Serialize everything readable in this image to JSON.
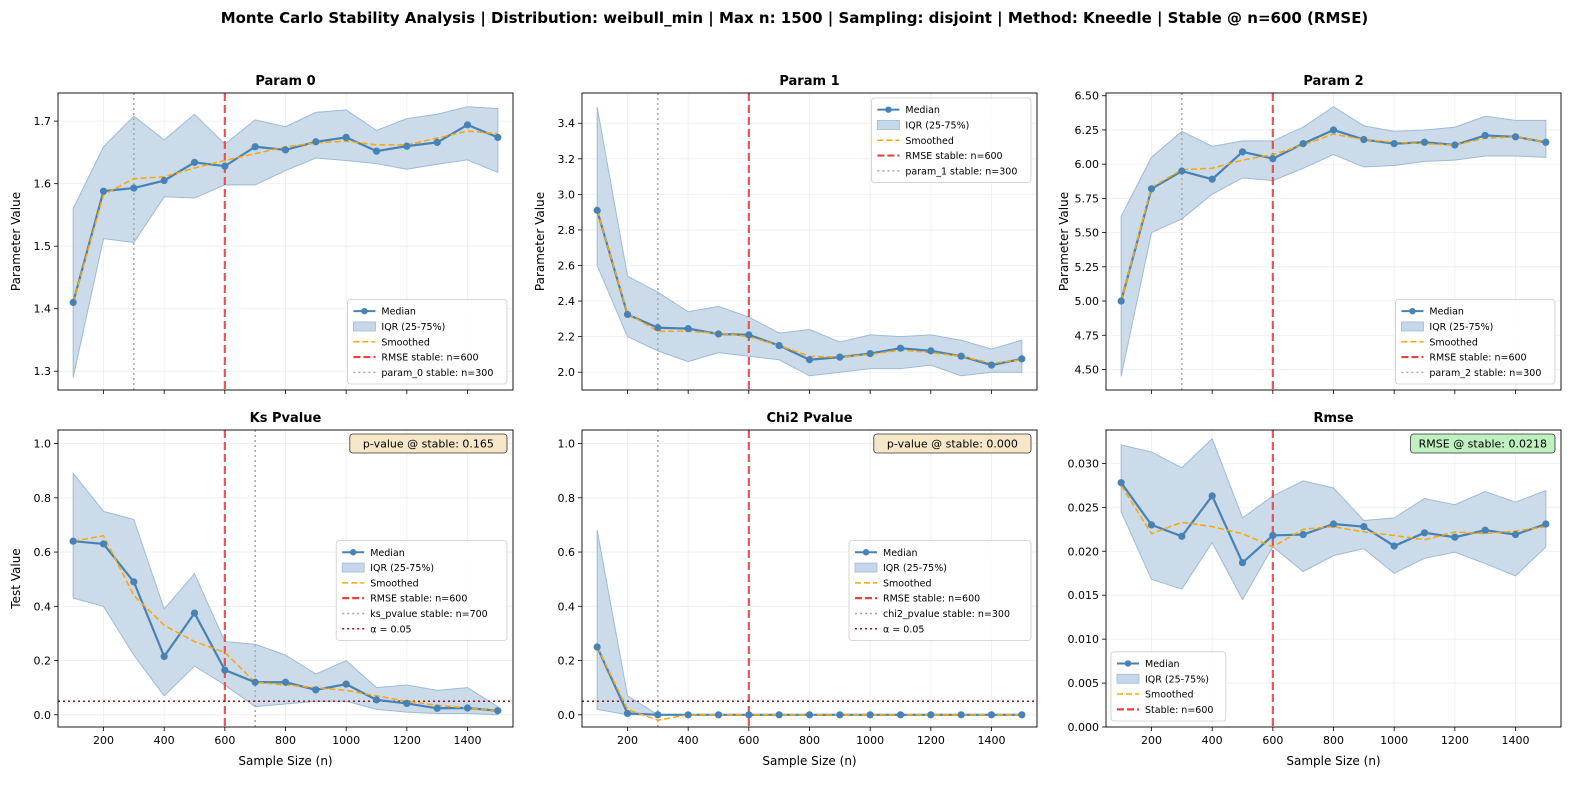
{
  "figure_title": "Monte Carlo Stability Analysis | Distribution: weibull_min | Max n: 1500 | Sampling: disjoint | Method: Kneedle | Stable @ n=600 (RMSE)",
  "colors": {
    "median": "#4682b4",
    "iqr_fill": "#c5d7e8",
    "iqr_edge": "#9dbbd6",
    "smoothed": "#ffa500",
    "rmse_stable": "#e8423f",
    "param_stable": "#a6a6a6",
    "alpha": "#8b1a1a",
    "pvalue_box": "#f6e7c8",
    "rmse_box": "#bff0bf"
  },
  "chart_data": [
    {
      "type": "line",
      "title": "Param 0",
      "xlabel": "",
      "ylabel": "Parameter Value",
      "x": [
        100,
        200,
        300,
        400,
        500,
        600,
        700,
        800,
        900,
        1000,
        1100,
        1200,
        1300,
        1400,
        1500
      ],
      "xlim": [
        50,
        1550
      ],
      "ylim": [
        1.27,
        1.745
      ],
      "yticks": [
        1.3,
        1.4,
        1.5,
        1.6,
        1.7
      ],
      "ytick_labels": [
        "1.3",
        "1.4",
        "1.5",
        "1.6",
        "1.7"
      ],
      "xticks": [
        200,
        400,
        600,
        800,
        1000,
        1200,
        1400
      ],
      "xtick_labels": [],
      "series": [
        {
          "name": "Median",
          "kind": "median",
          "values": [
            1.41,
            1.588,
            1.593,
            1.605,
            1.634,
            1.628,
            1.659,
            1.654,
            1.667,
            1.674,
            1.652,
            1.66,
            1.666,
            1.694,
            1.674
          ]
        },
        {
          "name": "IQR (25-75%)",
          "kind": "iqr",
          "lower": [
            1.29,
            1.512,
            1.506,
            1.579,
            1.577,
            1.598,
            1.598,
            1.621,
            1.641,
            1.637,
            1.632,
            1.623,
            1.631,
            1.638,
            1.618
          ],
          "upper": [
            1.56,
            1.659,
            1.708,
            1.67,
            1.711,
            1.663,
            1.702,
            1.691,
            1.714,
            1.718,
            1.685,
            1.704,
            1.711,
            1.723,
            1.72
          ]
        },
        {
          "name": "Smoothed",
          "kind": "smoothed",
          "values": [
            1.41,
            1.582,
            1.608,
            1.611,
            1.625,
            1.637,
            1.648,
            1.659,
            1.665,
            1.668,
            1.662,
            1.662,
            1.673,
            1.684,
            1.68
          ]
        }
      ],
      "vlines": [
        {
          "name": "RMSE stable: n=600",
          "x": 600,
          "kind": "rmse"
        },
        {
          "name": "param_0 stable: n=300",
          "x": 300,
          "kind": "param"
        }
      ],
      "legend_position": "lower-right"
    },
    {
      "type": "line",
      "title": "Param 1",
      "xlabel": "",
      "ylabel": "Parameter Value",
      "x": [
        100,
        200,
        300,
        400,
        500,
        600,
        700,
        800,
        900,
        1000,
        1100,
        1200,
        1300,
        1400,
        1500
      ],
      "xlim": [
        50,
        1550
      ],
      "ylim": [
        1.9,
        3.57
      ],
      "yticks": [
        2.0,
        2.2,
        2.4,
        2.6,
        2.8,
        3.0,
        3.2,
        3.4
      ],
      "ytick_labels": [
        "2.0",
        "2.2",
        "2.4",
        "2.6",
        "2.8",
        "3.0",
        "3.2",
        "3.4"
      ],
      "xticks": [
        200,
        400,
        600,
        800,
        1000,
        1200,
        1400
      ],
      "xtick_labels": [],
      "series": [
        {
          "name": "Median",
          "kind": "median",
          "values": [
            2.91,
            2.325,
            2.25,
            2.245,
            2.215,
            2.21,
            2.15,
            2.07,
            2.085,
            2.105,
            2.135,
            2.12,
            2.09,
            2.04,
            2.075
          ]
        },
        {
          "name": "IQR (25-75%)",
          "kind": "iqr",
          "lower": [
            2.6,
            2.2,
            2.12,
            2.06,
            2.11,
            2.09,
            2.07,
            1.98,
            2.0,
            2.02,
            2.02,
            2.04,
            1.98,
            2.0,
            2.0
          ],
          "upper": [
            3.49,
            2.54,
            2.45,
            2.34,
            2.37,
            2.31,
            2.22,
            2.24,
            2.17,
            2.21,
            2.2,
            2.21,
            2.18,
            2.13,
            2.18
          ]
        },
        {
          "name": "Smoothed",
          "kind": "smoothed",
          "values": [
            2.91,
            2.33,
            2.23,
            2.23,
            2.22,
            2.2,
            2.15,
            2.09,
            2.085,
            2.1,
            2.125,
            2.11,
            2.09,
            2.05,
            2.07
          ]
        }
      ],
      "vlines": [
        {
          "name": "RMSE stable: n=600",
          "x": 600,
          "kind": "rmse"
        },
        {
          "name": "param_1 stable: n=300",
          "x": 300,
          "kind": "param"
        }
      ],
      "legend_position": "upper-right"
    },
    {
      "type": "line",
      "title": "Param 2",
      "xlabel": "",
      "ylabel": "Parameter Value",
      "x": [
        100,
        200,
        300,
        400,
        500,
        600,
        700,
        800,
        900,
        1000,
        1100,
        1200,
        1300,
        1400,
        1500
      ],
      "xlim": [
        50,
        1550
      ],
      "ylim": [
        4.35,
        6.52
      ],
      "yticks": [
        4.5,
        4.75,
        5.0,
        5.25,
        5.5,
        5.75,
        6.0,
        6.25,
        6.5
      ],
      "ytick_labels": [
        "4.50",
        "4.75",
        "5.00",
        "5.25",
        "5.50",
        "5.75",
        "6.00",
        "6.25",
        "6.50"
      ],
      "xticks": [
        200,
        400,
        600,
        800,
        1000,
        1200,
        1400
      ],
      "xtick_labels": [],
      "series": [
        {
          "name": "Median",
          "kind": "median",
          "values": [
            5.0,
            5.82,
            5.95,
            5.89,
            6.09,
            6.04,
            6.15,
            6.25,
            6.18,
            6.15,
            6.16,
            6.14,
            6.21,
            6.2,
            6.16
          ]
        },
        {
          "name": "IQR (25-75%)",
          "kind": "iqr",
          "lower": [
            4.45,
            5.5,
            5.6,
            5.78,
            5.9,
            5.88,
            5.97,
            6.07,
            5.98,
            5.99,
            6.02,
            6.03,
            6.06,
            6.06,
            6.05
          ]
        },
        {
          "name": "Smoothed",
          "kind": "smoothed",
          "values": [
            5.0,
            5.83,
            5.96,
            5.97,
            6.03,
            6.07,
            6.14,
            6.22,
            6.18,
            6.16,
            6.15,
            6.14,
            6.19,
            6.2,
            6.16
          ]
        }
      ],
      "iqr_upper": [
        5.62,
        6.05,
        6.24,
        6.13,
        6.17,
        6.17,
        6.27,
        6.42,
        6.28,
        6.24,
        6.25,
        6.27,
        6.35,
        6.32,
        6.32
      ],
      "vlines": [
        {
          "name": "RMSE stable: n=600",
          "x": 600,
          "kind": "rmse"
        },
        {
          "name": "param_2 stable: n=300",
          "x": 300,
          "kind": "param"
        }
      ],
      "legend_position": "lower-right"
    },
    {
      "type": "line",
      "title": "Ks Pvalue",
      "xlabel": "Sample Size (n)",
      "ylabel": "Test Value",
      "x": [
        100,
        200,
        300,
        400,
        500,
        600,
        700,
        800,
        900,
        1000,
        1100,
        1200,
        1300,
        1400,
        1500
      ],
      "xlim": [
        50,
        1550
      ],
      "ylim": [
        -0.045,
        1.05
      ],
      "yticks": [
        0.0,
        0.2,
        0.4,
        0.6,
        0.8,
        1.0
      ],
      "ytick_labels": [
        "0.0",
        "0.2",
        "0.4",
        "0.6",
        "0.8",
        "1.0"
      ],
      "xticks": [
        200,
        400,
        600,
        800,
        1000,
        1200,
        1400
      ],
      "xtick_labels": [
        "200",
        "400",
        "600",
        "800",
        "1000",
        "1200",
        "1400"
      ],
      "series": [
        {
          "name": "Median",
          "kind": "median",
          "values": [
            0.64,
            0.63,
            0.49,
            0.215,
            0.375,
            0.165,
            0.12,
            0.12,
            0.092,
            0.113,
            0.055,
            0.042,
            0.024,
            0.025,
            0.015
          ]
        },
        {
          "name": "IQR (25-75%)",
          "kind": "iqr",
          "lower": [
            0.43,
            0.4,
            0.22,
            0.07,
            0.18,
            0.11,
            0.03,
            0.04,
            0.05,
            0.05,
            0.02,
            0.01,
            0.005,
            0.005,
            0.0
          ],
          "upper": [
            0.89,
            0.75,
            0.72,
            0.39,
            0.52,
            0.27,
            0.26,
            0.22,
            0.15,
            0.2,
            0.1,
            0.11,
            0.09,
            0.1,
            0.03
          ]
        },
        {
          "name": "Smoothed",
          "kind": "smoothed",
          "values": [
            0.64,
            0.66,
            0.44,
            0.33,
            0.27,
            0.23,
            0.12,
            0.11,
            0.1,
            0.09,
            0.07,
            0.05,
            0.035,
            0.025,
            0.015
          ]
        }
      ],
      "vlines": [
        {
          "name": "RMSE stable: n=600",
          "x": 600,
          "kind": "rmse"
        },
        {
          "name": "ks_pvalue stable: n=700",
          "x": 700,
          "kind": "param"
        }
      ],
      "hline": {
        "name": "α = 0.05",
        "y": 0.05
      },
      "annotation": {
        "text": "p-value @ stable: 0.165",
        "box": "pvalue"
      },
      "legend_position": "center-right"
    },
    {
      "type": "line",
      "title": "Chi2 Pvalue",
      "xlabel": "Sample Size (n)",
      "ylabel": "",
      "x": [
        100,
        200,
        300,
        400,
        500,
        600,
        700,
        800,
        900,
        1000,
        1100,
        1200,
        1300,
        1400,
        1500
      ],
      "xlim": [
        50,
        1550
      ],
      "ylim": [
        -0.045,
        1.05
      ],
      "yticks": [
        0.0,
        0.2,
        0.4,
        0.6,
        0.8,
        1.0
      ],
      "ytick_labels": [
        "0.0",
        "0.2",
        "0.4",
        "0.6",
        "0.8",
        "1.0"
      ],
      "xticks": [
        200,
        400,
        600,
        800,
        1000,
        1200,
        1400
      ],
      "xtick_labels": [
        "200",
        "400",
        "600",
        "800",
        "1000",
        "1200",
        "1400"
      ],
      "series": [
        {
          "name": "Median",
          "kind": "median",
          "values": [
            0.25,
            0.005,
            0.0,
            0.0,
            0.0,
            0.0,
            0.0,
            0.0,
            0.0,
            0.0,
            0.0,
            0.0,
            0.0,
            0.0,
            0.0
          ]
        },
        {
          "name": "IQR (25-75%)",
          "kind": "iqr",
          "lower": [
            0.02,
            0.0,
            0.0,
            0.0,
            0.0,
            0.0,
            0.0,
            0.0,
            0.0,
            0.0,
            0.0,
            0.0,
            0.0,
            0.0,
            0.0
          ],
          "upper": [
            0.68,
            0.07,
            0.0,
            0.0,
            0.0,
            0.0,
            0.0,
            0.0,
            0.0,
            0.0,
            0.0,
            0.0,
            0.0,
            0.0,
            0.0
          ]
        },
        {
          "name": "Smoothed",
          "kind": "smoothed",
          "values": [
            0.25,
            0.02,
            -0.02,
            0.0,
            0.0,
            0.0,
            0.0,
            0.0,
            0.0,
            0.0,
            0.0,
            0.0,
            0.0,
            0.0,
            0.0
          ]
        }
      ],
      "vlines": [
        {
          "name": "RMSE stable: n=600",
          "x": 600,
          "kind": "rmse"
        },
        {
          "name": "chi2_pvalue stable: n=300",
          "x": 300,
          "kind": "param"
        }
      ],
      "hline": {
        "name": "α = 0.05",
        "y": 0.05
      },
      "annotation": {
        "text": "p-value @ stable: 0.000",
        "box": "pvalue"
      },
      "legend_position": "center-right"
    },
    {
      "type": "line",
      "title": "Rmse",
      "xlabel": "Sample Size (n)",
      "ylabel": "",
      "x": [
        100,
        200,
        300,
        400,
        500,
        600,
        700,
        800,
        900,
        1000,
        1100,
        1200,
        1300,
        1400,
        1500
      ],
      "xlim": [
        50,
        1550
      ],
      "ylim": [
        0.0,
        0.0338
      ],
      "yticks": [
        0.0,
        0.005,
        0.01,
        0.015,
        0.02,
        0.025,
        0.03
      ],
      "ytick_labels": [
        "0.000",
        "0.005",
        "0.010",
        "0.015",
        "0.020",
        "0.025",
        "0.030"
      ],
      "xticks": [
        200,
        400,
        600,
        800,
        1000,
        1200,
        1400
      ],
      "xtick_labels": [
        "200",
        "400",
        "600",
        "800",
        "1000",
        "1200",
        "1400"
      ],
      "series": [
        {
          "name": "Median",
          "kind": "median",
          "values": [
            0.0278,
            0.023,
            0.0217,
            0.0263,
            0.0187,
            0.0218,
            0.0219,
            0.0231,
            0.0228,
            0.0206,
            0.0221,
            0.0216,
            0.0224,
            0.0219,
            0.0231
          ]
        },
        {
          "name": "IQR (25-75%)",
          "kind": "iqr",
          "lower": [
            0.0245,
            0.0168,
            0.0157,
            0.021,
            0.0145,
            0.0205,
            0.0177,
            0.0195,
            0.0203,
            0.0175,
            0.0192,
            0.0199,
            0.0186,
            0.0172,
            0.0205
          ],
          "upper": [
            0.0321,
            0.0313,
            0.0295,
            0.0328,
            0.0238,
            0.0263,
            0.028,
            0.0272,
            0.0235,
            0.0238,
            0.026,
            0.0253,
            0.0268,
            0.0256,
            0.0269
          ]
        },
        {
          "name": "Smoothed",
          "kind": "smoothed",
          "values": [
            0.0275,
            0.022,
            0.0233,
            0.0228,
            0.022,
            0.0205,
            0.0225,
            0.0228,
            0.0222,
            0.0218,
            0.0213,
            0.0222,
            0.022,
            0.0223,
            0.0228
          ]
        }
      ],
      "vlines": [
        {
          "name": "Stable: n=600",
          "x": 600,
          "kind": "rmse"
        }
      ],
      "annotation": {
        "text": "RMSE @ stable: 0.0218",
        "box": "rmse"
      },
      "legend_position": "lower-left"
    }
  ]
}
